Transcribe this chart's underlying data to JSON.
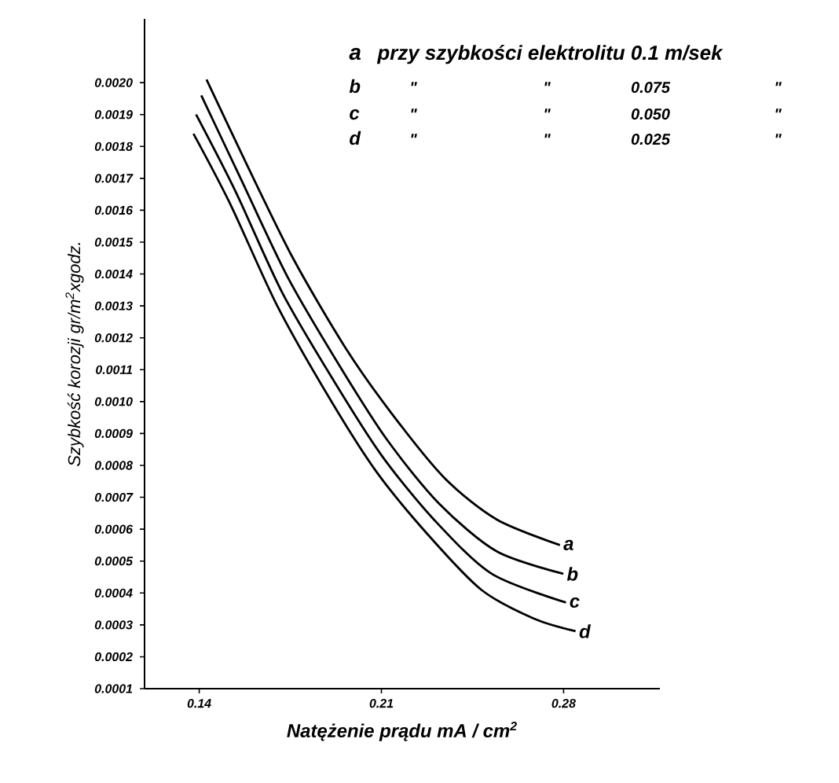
{
  "chart_data": {
    "type": "line",
    "xlabel": "Natężenie prądu  mA / cm$^{2}$",
    "ylabel": "Szybkość korozji gr/m$^{2}$xgodz.",
    "xlim": [
      0.119,
      0.317
    ],
    "ylim": [
      0.0001,
      0.0022
    ],
    "xticks": [
      {
        "value": 0.14,
        "label": "0.14"
      },
      {
        "value": 0.21,
        "label": "0.21"
      },
      {
        "value": 0.28,
        "label": "0.28"
      }
    ],
    "yticks": [
      {
        "value": 0.0001,
        "label": "0.0001"
      },
      {
        "value": 0.0002,
        "label": "0.0002"
      },
      {
        "value": 0.0003,
        "label": "0.0003"
      },
      {
        "value": 0.0004,
        "label": "0.0004"
      },
      {
        "value": 0.0005,
        "label": "0.0005"
      },
      {
        "value": 0.0006,
        "label": "0.0006"
      },
      {
        "value": 0.0007,
        "label": "0.0007"
      },
      {
        "value": 0.0008,
        "label": "0.0008"
      },
      {
        "value": 0.0009,
        "label": "0.0009"
      },
      {
        "value": 0.001,
        "label": "0.0010"
      },
      {
        "value": 0.0011,
        "label": "0.0011"
      },
      {
        "value": 0.0012,
        "label": "0.0012"
      },
      {
        "value": 0.0013,
        "label": "0.0013"
      },
      {
        "value": 0.0014,
        "label": "0.0014"
      },
      {
        "value": 0.0015,
        "label": "0.0015"
      },
      {
        "value": 0.0016,
        "label": "0.0016"
      },
      {
        "value": 0.0017,
        "label": "0.0017"
      },
      {
        "value": 0.0018,
        "label": "0.0018"
      },
      {
        "value": 0.0019,
        "label": "0.0019"
      },
      {
        "value": 0.002,
        "label": "0.0020"
      }
    ],
    "marker": "none",
    "line_style": "solid",
    "legend": false,
    "series": [
      {
        "name": "a",
        "color": "#000000",
        "x": [
          0.1428,
          0.1579,
          0.176,
          0.1961,
          0.2142,
          0.2343,
          0.2544,
          0.2786
        ],
        "values": [
          0.00201,
          0.00175,
          0.00145,
          0.00117,
          0.00096,
          0.00076,
          0.00063,
          0.00055
        ]
      },
      {
        "name": "b",
        "color": "#000000",
        "x": [
          0.1408,
          0.1559,
          0.174,
          0.1941,
          0.2122,
          0.2322,
          0.2544,
          0.2799
        ],
        "values": [
          0.00196,
          0.0017,
          0.00139,
          0.00111,
          0.00088,
          0.00068,
          0.00053,
          0.00046
        ]
      },
      {
        "name": "c",
        "color": "#000000",
        "x": [
          0.1388,
          0.1539,
          0.172,
          0.1921,
          0.2102,
          0.2302,
          0.2524,
          0.2809
        ],
        "values": [
          0.0019,
          0.00166,
          0.00134,
          0.00106,
          0.00083,
          0.00063,
          0.00046,
          0.00037
        ]
      },
      {
        "name": "d",
        "color": "#000000",
        "x": [
          0.1378,
          0.1519,
          0.17,
          0.1901,
          0.2081,
          0.2282,
          0.2484,
          0.2685,
          0.2846
        ],
        "values": [
          0.00184,
          0.00162,
          0.0013,
          0.00101,
          0.00078,
          0.00058,
          0.00041,
          0.00032,
          0.00028
        ]
      }
    ],
    "annotations": [
      "przy szybkości elektrolitu 0.1 m/sek",
      "\"",
      "\"",
      "0.075",
      "\"",
      "\"",
      "\"",
      "0.050",
      "\"",
      "\"",
      "\"",
      "0.025",
      "\""
    ]
  }
}
